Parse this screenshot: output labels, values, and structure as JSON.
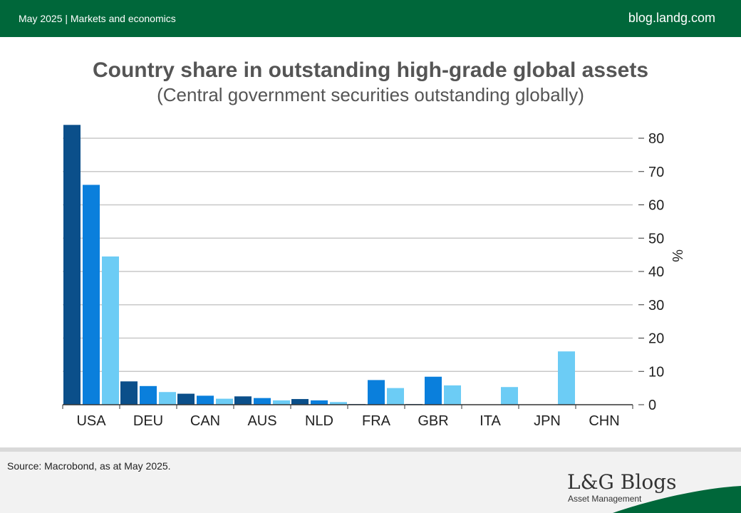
{
  "header": {
    "left_text": "May 2025 | Markets and economics",
    "right_text": "blog.landg.com"
  },
  "footer": {
    "source": "Source: Macrobond, as at May 2025.",
    "brand": "L&G Blogs",
    "brand_sub": "Asset Management"
  },
  "colors": {
    "header_green": "#00673a",
    "series": [
      "#0b4f8a",
      "#0a7fdc",
      "#6cccf5"
    ]
  },
  "chart_data": {
    "type": "bar",
    "title": "Country share in outstanding high-grade global assets",
    "subtitle": "(Central government securities outstanding globally)",
    "xlabel": "",
    "ylabel": "%",
    "y_axis_side": "right",
    "ylim": [
      0,
      85
    ],
    "yticks": [
      0,
      10,
      20,
      30,
      40,
      50,
      60,
      70,
      80
    ],
    "grid": true,
    "legend": "none",
    "categories": [
      "USA",
      "DEU",
      "CAN",
      "AUS",
      "NLD",
      "FRA",
      "GBR",
      "ITA",
      "JPN",
      "CHN"
    ],
    "series": [
      {
        "values": [
          84,
          7,
          3.3,
          2.5,
          1.7,
          0.2,
          0.2,
          0.1,
          0.1,
          0.1
        ]
      },
      {
        "values": [
          66,
          5.6,
          2.7,
          2.0,
          1.3,
          7.4,
          8.4,
          0.1,
          0.1,
          0.1
        ]
      },
      {
        "values": [
          44.5,
          3.8,
          1.8,
          1.3,
          0.8,
          5.0,
          5.8,
          5.3,
          16,
          0.1
        ]
      }
    ]
  }
}
